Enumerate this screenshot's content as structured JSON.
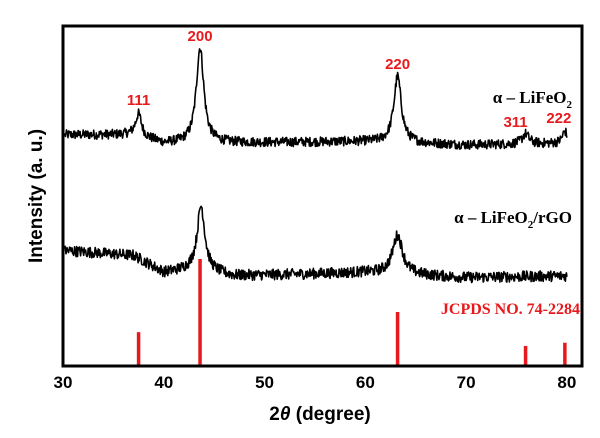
{
  "chart_data": {
    "type": "line",
    "title": "",
    "xlabel_prefix": "2",
    "xlabel_symbol": "θ",
    "xlabel_suffix": " (degree)",
    "ylabel": "Intensity (a. u.)",
    "xlim": [
      30,
      81.5
    ],
    "ylim": [
      0,
      100
    ],
    "x_ticks": [
      30,
      40,
      50,
      60,
      70,
      80
    ],
    "x_tick_labels": [
      "30",
      "40",
      "50",
      "60",
      "70",
      "80"
    ],
    "y_ticks_shown": false,
    "grid": false,
    "colors": {
      "series": "#000000",
      "reference": "#e8191c",
      "annotation": "#e8191c"
    },
    "series": [
      {
        "name": "α – LiFeO2",
        "label_main": "α – LiFeO",
        "label_sub": "2",
        "label_tail": "",
        "baseline": [
          [
            30,
            68
          ],
          [
            37,
            68
          ],
          [
            40,
            65.5
          ],
          [
            60,
            66
          ],
          [
            70,
            65
          ],
          [
            80,
            65.5
          ]
        ],
        "peaks": [
          {
            "x": 37.5,
            "height": 6.5,
            "width": 0.35
          },
          {
            "x": 43.6,
            "height": 28,
            "width": 0.45
          },
          {
            "x": 63.2,
            "height": 19.5,
            "width": 0.45
          },
          {
            "x": 75.9,
            "height": 3,
            "width": 0.4
          },
          {
            "x": 79.8,
            "height": 3.5,
            "width": 0.3
          }
        ],
        "noise": 1.4
      },
      {
        "name": "α – LiFeO2/rGO",
        "label_main": "α – LiFeO",
        "label_sub": "2",
        "label_tail": "/rGO",
        "baseline": [
          [
            30,
            34
          ],
          [
            37,
            32.5
          ],
          [
            40,
            27.5
          ],
          [
            43,
            28.5
          ],
          [
            47,
            26.5
          ],
          [
            60,
            27.5
          ],
          [
            70,
            26
          ],
          [
            80,
            26.5
          ]
        ],
        "peaks": [
          {
            "x": 43.7,
            "height": 19,
            "width": 0.45
          },
          {
            "x": 63.2,
            "height": 11.5,
            "width": 0.6
          }
        ],
        "noise": 1.6
      }
    ],
    "reference": {
      "label": "JCPDS NO. 74-2284",
      "type": "stick",
      "lines": [
        {
          "x": 37.5,
          "relative_intensity": 31
        },
        {
          "x": 43.6,
          "relative_intensity": 100
        },
        {
          "x": 63.2,
          "relative_intensity": 50
        },
        {
          "x": 75.9,
          "relative_intensity": 18
        },
        {
          "x": 79.8,
          "relative_intensity": 21
        }
      ]
    },
    "annotations": [
      {
        "text": "111",
        "x": 37.5
      },
      {
        "text": "200",
        "x": 43.6
      },
      {
        "text": "220",
        "x": 63.2
      },
      {
        "text": "311",
        "x": 75.9
      },
      {
        "text": "222",
        "x": 79.8
      }
    ]
  }
}
